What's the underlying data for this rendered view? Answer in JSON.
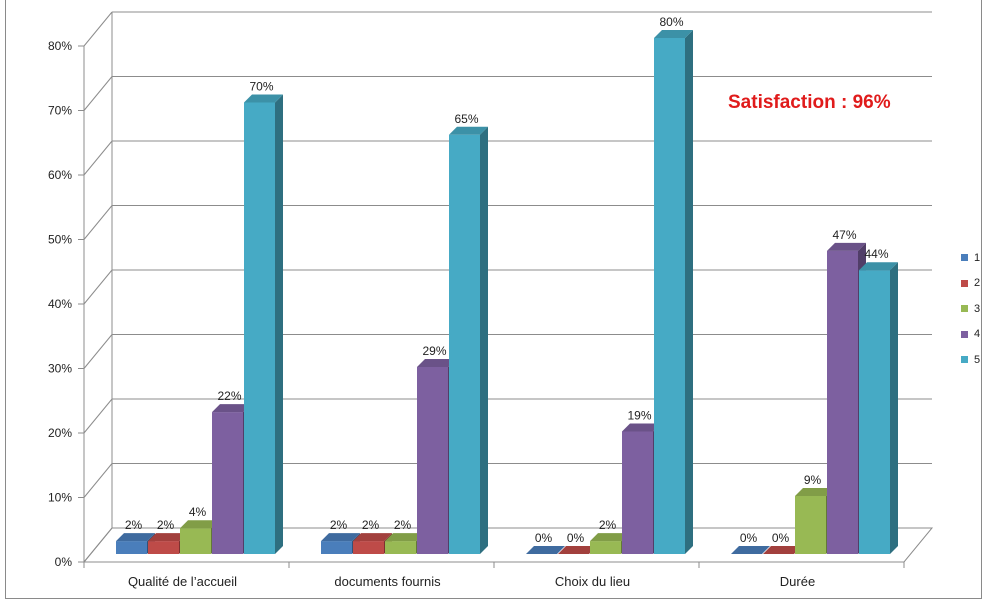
{
  "chart_data": {
    "type": "bar",
    "title": "",
    "subtitle": "Satisfaction : 96%",
    "categories": [
      "Qualité de l’accueil",
      "documents fournis",
      "Choix du lieu",
      "Durée"
    ],
    "ylim": [
      0,
      80
    ],
    "yticks": [
      "0%",
      "10%",
      "20%",
      "30%",
      "40%",
      "50%",
      "60%",
      "70%",
      "80%"
    ],
    "grid": true,
    "legend_position": "right",
    "series": [
      {
        "name": "1",
        "color": "#4a7ebb",
        "values": [
          2,
          2,
          0,
          0
        ],
        "labels": [
          "2%",
          "2%",
          "0%",
          "0%"
        ]
      },
      {
        "name": "2",
        "color": "#be4b48",
        "values": [
          2,
          2,
          0,
          0
        ],
        "labels": [
          "2%",
          "2%",
          "0%",
          "0%"
        ]
      },
      {
        "name": "3",
        "color": "#98b954",
        "values": [
          4,
          2,
          2,
          9
        ],
        "labels": [
          "4%",
          "2%",
          "2%",
          "9%"
        ]
      },
      {
        "name": "4",
        "color": "#7d60a0",
        "values": [
          22,
          29,
          19,
          47
        ],
        "labels": [
          "22%",
          "29%",
          "19%",
          "47%"
        ]
      },
      {
        "name": "5",
        "color": "#46aac5",
        "values": [
          70,
          65,
          80,
          44
        ],
        "labels": [
          "70%",
          "65%",
          "80%",
          "44%"
        ]
      }
    ]
  }
}
